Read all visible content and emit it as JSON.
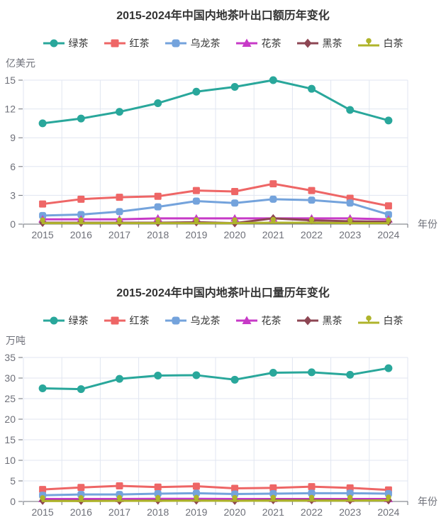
{
  "page": {
    "background": "#ffffff",
    "grid_color": "#E0E6F1",
    "axis_color": "#6E7079",
    "tick_label_color": "#6E7079",
    "title_color": "#333333",
    "legend_text_color": "#333333"
  },
  "chart_data": [
    {
      "type": "line",
      "title": "2015-2024年中国内地茶叶出口额历年变化",
      "ylabel": "亿美元",
      "xlabel": "年份",
      "grid": true,
      "legend_position": "top",
      "categories": [
        "2015",
        "2016",
        "2017",
        "2018",
        "2019",
        "2020",
        "2021",
        "2022",
        "2023",
        "2024"
      ],
      "ylim": [
        0,
        15
      ],
      "ytick_step": 3,
      "series": [
        {
          "name": "绿茶",
          "color": "#29A79B",
          "symbol": "circle",
          "values": [
            10.5,
            11.0,
            11.7,
            12.6,
            13.8,
            14.3,
            15.0,
            14.1,
            11.9,
            10.8
          ]
        },
        {
          "name": "红茶",
          "color": "#EE6666",
          "symbol": "square",
          "values": [
            2.1,
            2.6,
            2.8,
            2.9,
            3.5,
            3.4,
            4.2,
            3.5,
            2.7,
            1.9
          ]
        },
        {
          "name": "乌龙茶",
          "color": "#74A3DC",
          "symbol": "roundrect",
          "values": [
            0.9,
            1.0,
            1.3,
            1.8,
            2.4,
            2.2,
            2.6,
            2.5,
            2.2,
            1.0
          ]
        },
        {
          "name": "花茶",
          "color": "#C73AC7",
          "symbol": "triangle",
          "values": [
            0.5,
            0.5,
            0.5,
            0.6,
            0.6,
            0.6,
            0.6,
            0.6,
            0.6,
            0.5
          ]
        },
        {
          "name": "黑茶",
          "color": "#8D4653",
          "symbol": "diamond",
          "values": [
            0.15,
            0.15,
            0.15,
            0.15,
            0.2,
            0.1,
            0.6,
            0.4,
            0.3,
            0.25
          ]
        },
        {
          "name": "白茶",
          "color": "#AFB42B",
          "symbol": "pin",
          "values": [
            0.1,
            0.1,
            0.1,
            0.1,
            0.1,
            0.1,
            0.15,
            0.15,
            0.1,
            0.1
          ]
        }
      ]
    },
    {
      "type": "line",
      "title": "2015-2024年中国内地茶叶出口量历年变化",
      "ylabel": "万吨",
      "xlabel": "年份",
      "grid": true,
      "legend_position": "top",
      "categories": [
        "2015",
        "2016",
        "2017",
        "2018",
        "2019",
        "2020",
        "2021",
        "2022",
        "2023",
        "2024"
      ],
      "ylim": [
        0,
        35
      ],
      "ytick_step": 5,
      "series": [
        {
          "name": "绿茶",
          "color": "#29A79B",
          "symbol": "circle",
          "values": [
            27.5,
            27.3,
            29.8,
            30.6,
            30.7,
            29.6,
            31.3,
            31.4,
            30.8,
            32.4
          ]
        },
        {
          "name": "红茶",
          "color": "#EE6666",
          "symbol": "square",
          "values": [
            2.9,
            3.4,
            3.8,
            3.5,
            3.7,
            3.2,
            3.3,
            3.6,
            3.3,
            2.8
          ]
        },
        {
          "name": "乌龙茶",
          "color": "#74A3DC",
          "symbol": "roundrect",
          "values": [
            1.5,
            1.7,
            1.7,
            1.9,
            2.0,
            1.8,
            1.9,
            2.0,
            2.0,
            1.9
          ]
        },
        {
          "name": "花茶",
          "color": "#C73AC7",
          "symbol": "triangle",
          "values": [
            0.6,
            0.6,
            0.6,
            0.65,
            0.65,
            0.6,
            0.6,
            0.6,
            0.6,
            0.6
          ]
        },
        {
          "name": "黑茶",
          "color": "#8D4653",
          "symbol": "diamond",
          "values": [
            0.2,
            0.2,
            0.2,
            0.25,
            0.25,
            0.2,
            0.35,
            0.35,
            0.3,
            0.3
          ]
        },
        {
          "name": "白茶",
          "color": "#AFB42B",
          "symbol": "pin",
          "values": [
            0.1,
            0.1,
            0.15,
            0.15,
            0.2,
            0.15,
            0.2,
            0.2,
            0.2,
            0.25
          ]
        }
      ]
    }
  ]
}
